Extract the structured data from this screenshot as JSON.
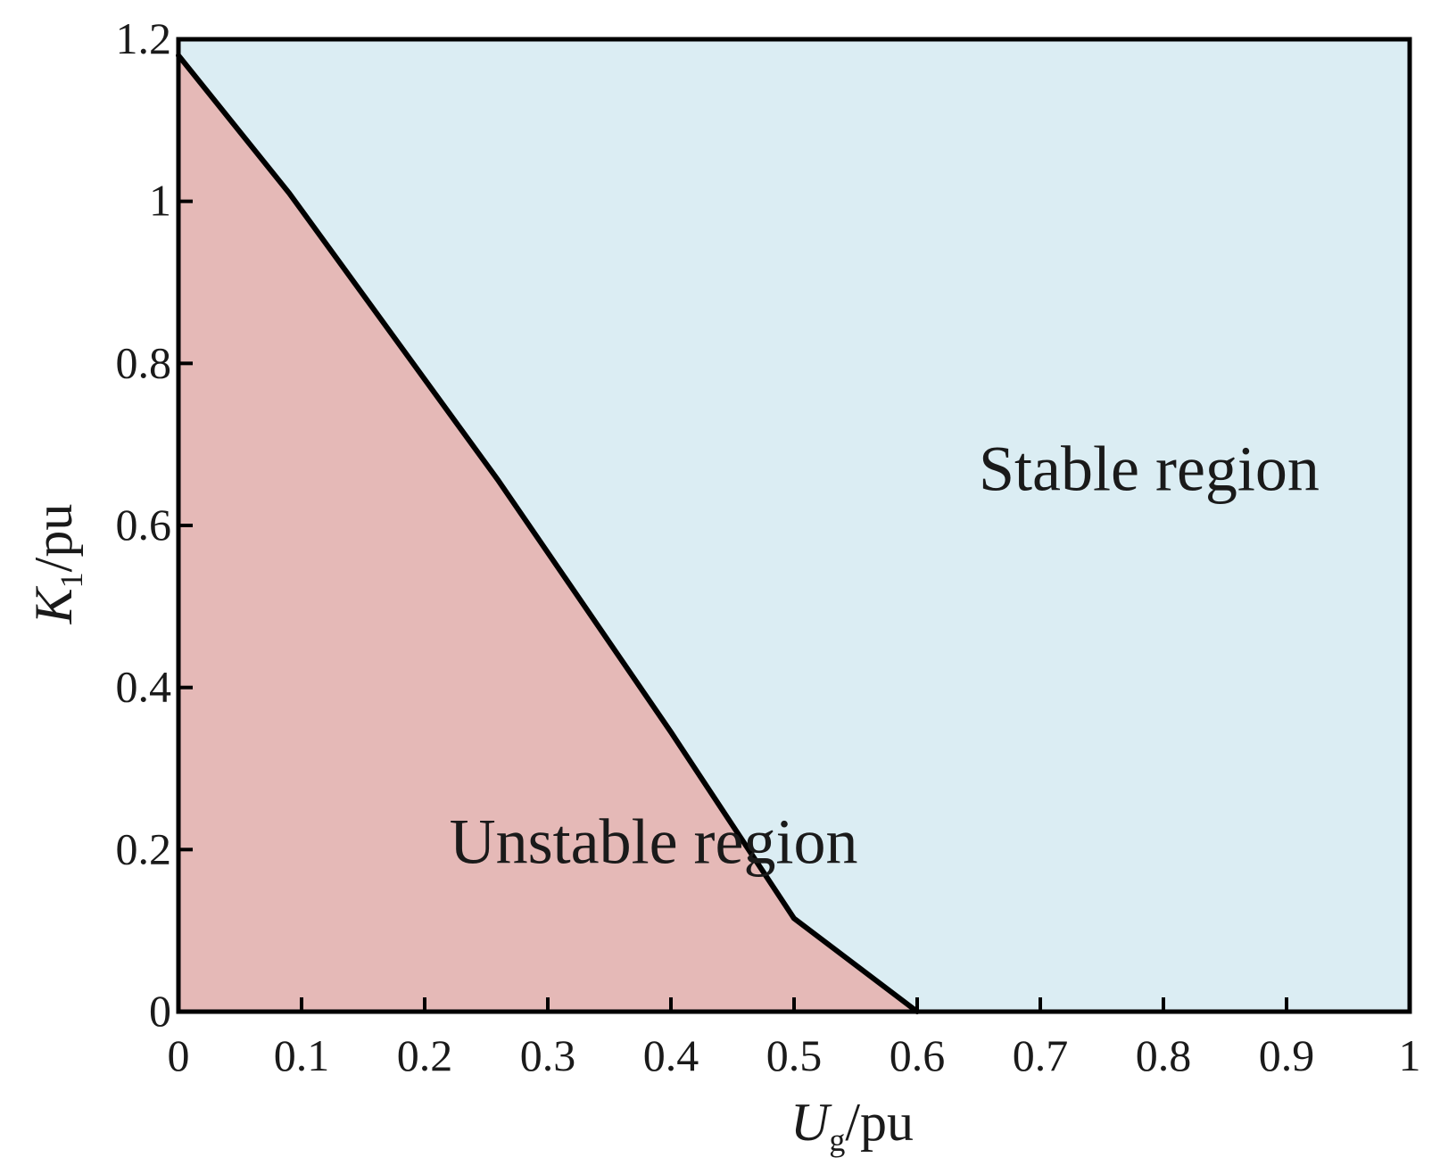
{
  "chart_data": {
    "type": "area",
    "title": "",
    "xlabel": {
      "symbol": "U",
      "subscript": "g",
      "unit": "/pu"
    },
    "ylabel": {
      "symbol": "K",
      "subscript": "1",
      "unit": "/pu"
    },
    "xlim": [
      0,
      1
    ],
    "ylim": [
      0,
      1.2
    ],
    "xticks": [
      0,
      0.1,
      0.2,
      0.3,
      0.4,
      0.5,
      0.6,
      0.7,
      0.8,
      0.9,
      1
    ],
    "xtick_labels": [
      "0",
      "0.1",
      "0.2",
      "0.3",
      "0.4",
      "0.5",
      "0.6",
      "0.7",
      "0.8",
      "0.9",
      "1"
    ],
    "yticks": [
      0,
      0.2,
      0.4,
      0.6,
      0.8,
      1,
      1.2
    ],
    "ytick_labels": [
      "0",
      "0.2",
      "0.4",
      "0.6",
      "0.8",
      "1",
      "1.2"
    ],
    "grid": false,
    "legend": "none",
    "boundary": {
      "x": [
        0,
        0.09,
        0.26,
        0.4,
        0.5,
        0.6
      ],
      "y": [
        1.18,
        1.01,
        0.655,
        0.345,
        0.115,
        0
      ]
    },
    "regions": [
      {
        "label": "Unstable region",
        "color": "#e5b9b7",
        "side": "below"
      },
      {
        "label": "Stable region",
        "color": "#dbedf3",
        "side": "above"
      }
    ],
    "region_label_positions": {
      "Unstable region": {
        "x": 0.22,
        "y": 0.21
      },
      "Stable region": {
        "x": 0.65,
        "y": 0.67
      }
    },
    "line_color": "#000000"
  }
}
